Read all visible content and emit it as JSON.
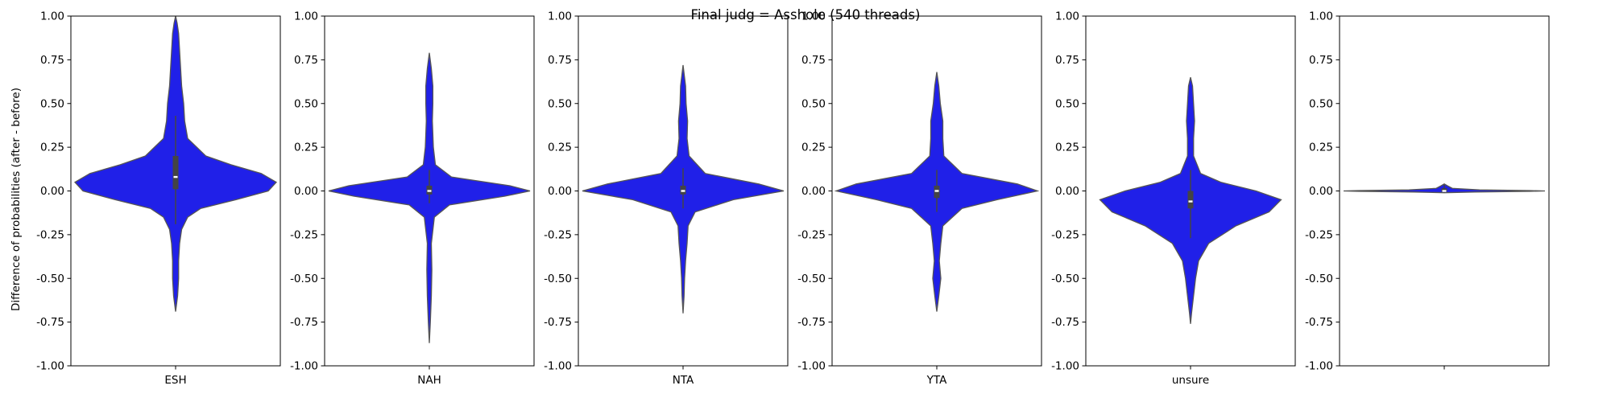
{
  "chart_data": {
    "type": "violin",
    "title": "Final judg = Asshole (540 threads)",
    "ylabel": "Difference of probabilities (after - before)",
    "ylim": [
      -1.0,
      1.0
    ],
    "yticks": [
      "-1.00",
      "-0.75",
      "-0.50",
      "-0.25",
      "0.00",
      "0.25",
      "0.50",
      "0.75",
      "1.00"
    ],
    "grid": false,
    "fill_color": "#2020e8",
    "edge_color": "#555555",
    "panels": [
      {
        "category": "ESH",
        "min": -0.69,
        "max": 1.0,
        "median": 0.08,
        "q1": 0.01,
        "q3": 0.2,
        "whisker_low": -0.19,
        "whisker_high": 0.43,
        "density": [
          {
            "y": -0.69,
            "w": 0.0
          },
          {
            "y": -0.6,
            "w": 0.02
          },
          {
            "y": -0.5,
            "w": 0.03
          },
          {
            "y": -0.4,
            "w": 0.03
          },
          {
            "y": -0.3,
            "w": 0.04
          },
          {
            "y": -0.22,
            "w": 0.06
          },
          {
            "y": -0.15,
            "w": 0.12
          },
          {
            "y": -0.1,
            "w": 0.25
          },
          {
            "y": -0.05,
            "w": 0.6
          },
          {
            "y": 0.0,
            "w": 0.92
          },
          {
            "y": 0.05,
            "w": 1.0
          },
          {
            "y": 0.1,
            "w": 0.85
          },
          {
            "y": 0.15,
            "w": 0.55
          },
          {
            "y": 0.2,
            "w": 0.3
          },
          {
            "y": 0.3,
            "w": 0.12
          },
          {
            "y": 0.4,
            "w": 0.09
          },
          {
            "y": 0.5,
            "w": 0.08
          },
          {
            "y": 0.6,
            "w": 0.06
          },
          {
            "y": 0.7,
            "w": 0.05
          },
          {
            "y": 0.8,
            "w": 0.04
          },
          {
            "y": 0.9,
            "w": 0.03
          },
          {
            "y": 0.96,
            "w": 0.015
          },
          {
            "y": 1.0,
            "w": 0.0
          }
        ]
      },
      {
        "category": "NAH",
        "min": -0.87,
        "max": 0.79,
        "median": 0.0,
        "q1": -0.02,
        "q3": 0.03,
        "whisker_low": -0.07,
        "whisker_high": 0.12,
        "density": [
          {
            "y": -0.87,
            "w": 0.0
          },
          {
            "y": -0.75,
            "w": 0.01
          },
          {
            "y": -0.6,
            "w": 0.02
          },
          {
            "y": -0.45,
            "w": 0.025
          },
          {
            "y": -0.3,
            "w": 0.02
          },
          {
            "y": -0.15,
            "w": 0.05
          },
          {
            "y": -0.08,
            "w": 0.2
          },
          {
            "y": -0.03,
            "w": 0.75
          },
          {
            "y": 0.0,
            "w": 1.0
          },
          {
            "y": 0.03,
            "w": 0.8
          },
          {
            "y": 0.08,
            "w": 0.22
          },
          {
            "y": 0.15,
            "w": 0.06
          },
          {
            "y": 0.25,
            "w": 0.04
          },
          {
            "y": 0.4,
            "w": 0.03
          },
          {
            "y": 0.5,
            "w": 0.035
          },
          {
            "y": 0.6,
            "w": 0.035
          },
          {
            "y": 0.7,
            "w": 0.02
          },
          {
            "y": 0.79,
            "w": 0.0
          }
        ]
      },
      {
        "category": "NTA",
        "min": -0.7,
        "max": 0.72,
        "median": 0.0,
        "q1": -0.02,
        "q3": 0.03,
        "whisker_low": -0.1,
        "whisker_high": 0.13,
        "density": [
          {
            "y": -0.7,
            "w": 0.0
          },
          {
            "y": -0.6,
            "w": 0.01
          },
          {
            "y": -0.5,
            "w": 0.015
          },
          {
            "y": -0.4,
            "w": 0.025
          },
          {
            "y": -0.3,
            "w": 0.04
          },
          {
            "y": -0.2,
            "w": 0.05
          },
          {
            "y": -0.12,
            "w": 0.12
          },
          {
            "y": -0.05,
            "w": 0.5
          },
          {
            "y": 0.0,
            "w": 1.0
          },
          {
            "y": 0.04,
            "w": 0.75
          },
          {
            "y": 0.1,
            "w": 0.22
          },
          {
            "y": 0.2,
            "w": 0.06
          },
          {
            "y": 0.3,
            "w": 0.04
          },
          {
            "y": 0.4,
            "w": 0.045
          },
          {
            "y": 0.5,
            "w": 0.03
          },
          {
            "y": 0.6,
            "w": 0.025
          },
          {
            "y": 0.72,
            "w": 0.0
          }
        ]
      },
      {
        "category": "YTA",
        "min": -0.69,
        "max": 0.68,
        "median": 0.0,
        "q1": -0.04,
        "q3": 0.03,
        "whisker_low": -0.12,
        "whisker_high": 0.12,
        "density": [
          {
            "y": -0.69,
            "w": 0.0
          },
          {
            "y": -0.6,
            "w": 0.02
          },
          {
            "y": -0.5,
            "w": 0.04
          },
          {
            "y": -0.4,
            "w": 0.025
          },
          {
            "y": -0.3,
            "w": 0.04
          },
          {
            "y": -0.2,
            "w": 0.06
          },
          {
            "y": -0.1,
            "w": 0.25
          },
          {
            "y": -0.05,
            "w": 0.6
          },
          {
            "y": 0.0,
            "w": 1.0
          },
          {
            "y": 0.04,
            "w": 0.8
          },
          {
            "y": 0.1,
            "w": 0.25
          },
          {
            "y": 0.2,
            "w": 0.07
          },
          {
            "y": 0.3,
            "w": 0.06
          },
          {
            "y": 0.4,
            "w": 0.06
          },
          {
            "y": 0.5,
            "w": 0.035
          },
          {
            "y": 0.6,
            "w": 0.02
          },
          {
            "y": 0.68,
            "w": 0.0
          }
        ]
      },
      {
        "category": "unsure",
        "min": -0.76,
        "max": 0.65,
        "median": -0.06,
        "q1": -0.1,
        "q3": 0.0,
        "whisker_low": -0.27,
        "whisker_high": 0.12,
        "density": [
          {
            "y": -0.76,
            "w": 0.0
          },
          {
            "y": -0.7,
            "w": 0.01
          },
          {
            "y": -0.6,
            "w": 0.03
          },
          {
            "y": -0.5,
            "w": 0.05
          },
          {
            "y": -0.4,
            "w": 0.08
          },
          {
            "y": -0.3,
            "w": 0.18
          },
          {
            "y": -0.2,
            "w": 0.45
          },
          {
            "y": -0.12,
            "w": 0.78
          },
          {
            "y": -0.05,
            "w": 0.9
          },
          {
            "y": 0.0,
            "w": 0.65
          },
          {
            "y": 0.05,
            "w": 0.3
          },
          {
            "y": 0.1,
            "w": 0.1
          },
          {
            "y": 0.2,
            "w": 0.03
          },
          {
            "y": 0.3,
            "w": 0.03
          },
          {
            "y": 0.4,
            "w": 0.04
          },
          {
            "y": 0.5,
            "w": 0.03
          },
          {
            "y": 0.6,
            "w": 0.02
          },
          {
            "y": 0.65,
            "w": 0.0
          }
        ]
      },
      {
        "category": "",
        "min": -0.01,
        "max": 0.04,
        "median": 0.0,
        "q1": -0.005,
        "q3": 0.015,
        "whisker_low": -0.01,
        "whisker_high": 0.035,
        "density": [
          {
            "y": -0.01,
            "w": 0.0
          },
          {
            "y": -0.006,
            "w": 0.3
          },
          {
            "y": -0.002,
            "w": 0.85
          },
          {
            "y": 0.0,
            "w": 1.0
          },
          {
            "y": 0.002,
            "w": 0.85
          },
          {
            "y": 0.006,
            "w": 0.35
          },
          {
            "y": 0.015,
            "w": 0.08
          },
          {
            "y": 0.03,
            "w": 0.03
          },
          {
            "y": 0.04,
            "w": 0.0
          }
        ]
      }
    ]
  }
}
